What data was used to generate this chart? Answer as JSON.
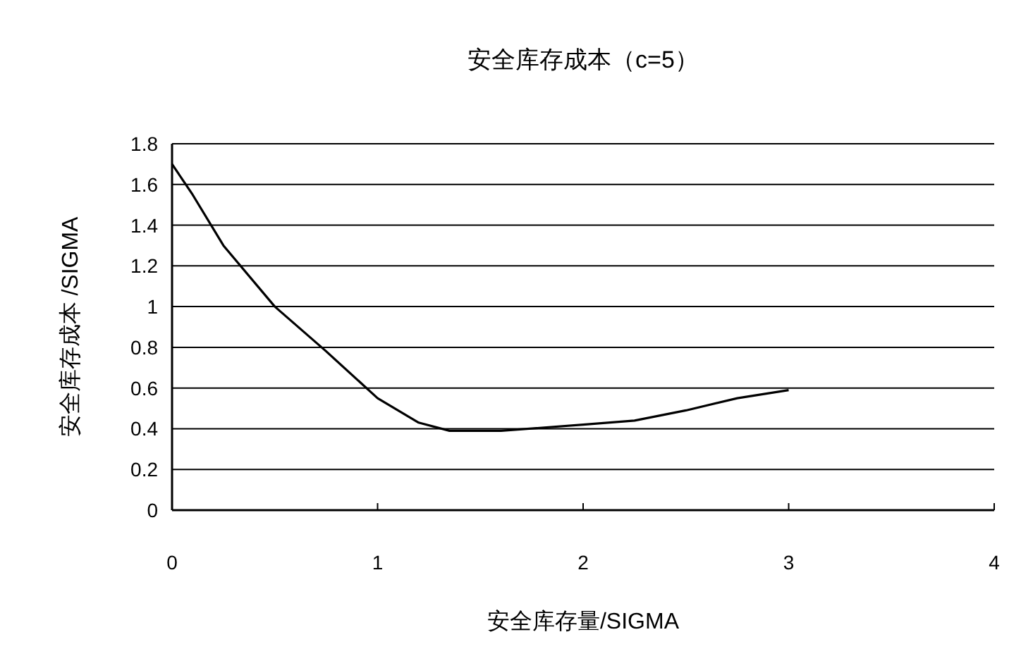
{
  "chart_data": {
    "type": "line",
    "title": "安全库存成本（c=5）",
    "xlabel": "安全库存量/SIGMA",
    "ylabel": "安全库存成本 /SIGMA",
    "x": [
      0,
      0.1,
      0.25,
      0.5,
      0.75,
      1,
      1.2,
      1.35,
      1.6,
      2,
      2.25,
      2.5,
      2.75,
      3
    ],
    "series": [
      {
        "color": "#000000",
        "values": [
          1.7,
          1.55,
          1.3,
          1.0,
          0.78,
          0.55,
          0.43,
          0.39,
          0.39,
          0.42,
          0.44,
          0.49,
          0.55,
          0.59
        ]
      }
    ],
    "xlim": [
      0,
      4
    ],
    "xticks": [
      0,
      1,
      2,
      3,
      4
    ],
    "ylim": [
      0,
      1.8
    ],
    "yticks": [
      0,
      0.2,
      0.4,
      0.6,
      0.8,
      1,
      1.2,
      1.4,
      1.6,
      1.8
    ],
    "grid": "y",
    "marker": "none",
    "line_style": "solid"
  }
}
